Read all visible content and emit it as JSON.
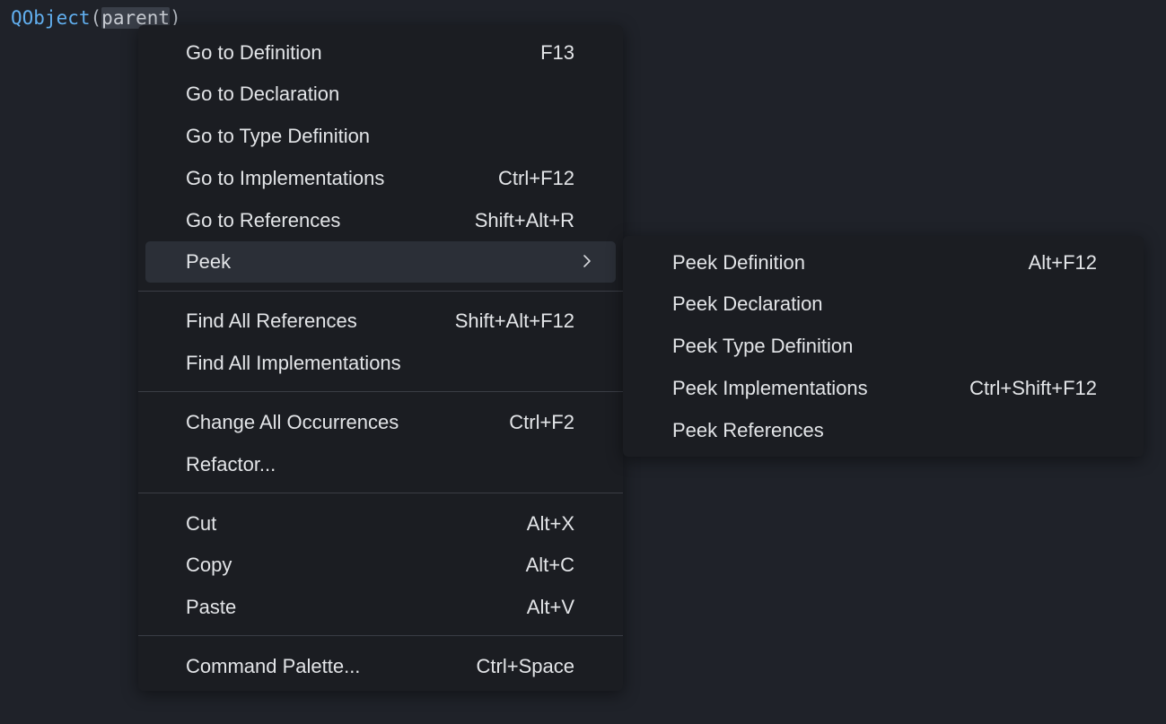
{
  "editor": {
    "code": {
      "class_name": "QObject",
      "open_paren": "(",
      "selected_word": "parent",
      "close_paren": ")"
    },
    "colors": {
      "background": "#1f2229",
      "menu_background": "#1b1d22",
      "keyword_blue": "#61afef",
      "active_item": "#2b2f37"
    }
  },
  "context_menu": {
    "items": [
      {
        "label": "Go to Definition",
        "shortcut": "F13"
      },
      {
        "label": "Go to Declaration",
        "shortcut": ""
      },
      {
        "label": "Go to Type Definition",
        "shortcut": ""
      },
      {
        "label": "Go to Implementations",
        "shortcut": "Ctrl+F12"
      },
      {
        "label": "Go to References",
        "shortcut": "Shift+Alt+R"
      },
      {
        "label": "Peek",
        "shortcut": "",
        "submenu_icon": "chevron-right-icon"
      },
      {
        "label": "Find All References",
        "shortcut": "Shift+Alt+F12"
      },
      {
        "label": "Find All Implementations",
        "shortcut": ""
      },
      {
        "label": "Change All Occurrences",
        "shortcut": "Ctrl+F2"
      },
      {
        "label": "Refactor...",
        "shortcut": ""
      },
      {
        "label": "Cut",
        "shortcut": "Alt+X"
      },
      {
        "label": "Copy",
        "shortcut": "Alt+C"
      },
      {
        "label": "Paste",
        "shortcut": "Alt+V"
      },
      {
        "label": "Command Palette...",
        "shortcut": "Ctrl+Space"
      }
    ]
  },
  "peek_submenu": {
    "items": [
      {
        "label": "Peek Definition",
        "shortcut": "Alt+F12"
      },
      {
        "label": "Peek Declaration",
        "shortcut": ""
      },
      {
        "label": "Peek Type Definition",
        "shortcut": ""
      },
      {
        "label": "Peek Implementations",
        "shortcut": "Ctrl+Shift+F12"
      },
      {
        "label": "Peek References",
        "shortcut": ""
      }
    ]
  }
}
